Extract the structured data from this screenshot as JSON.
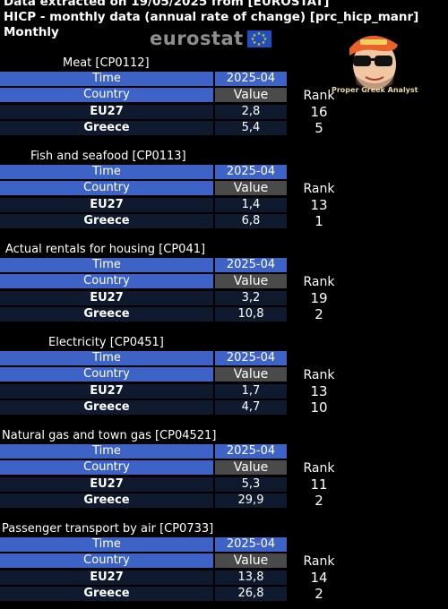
{
  "header": {
    "line1": "Data extracted on 19/05/2025 from [EUROSTAT]",
    "line2": "HICP - monthly data (annual rate of change) [prc_hicp_manr]",
    "line3": "Monthly",
    "logo_text": "eurostat",
    "mascot_caption": "Proper Greek Analyst"
  },
  "labels": {
    "time": "Time",
    "country": "Country",
    "period": "2025-04",
    "value": "Value",
    "rank": "Rank"
  },
  "tables": [
    {
      "title": "Meat [CP0112]",
      "rows": [
        {
          "country": "EU27",
          "value": "2,8",
          "rank": "16"
        },
        {
          "country": "Greece",
          "value": "5,4",
          "rank": "5"
        }
      ]
    },
    {
      "title": "Fish and seafood [CP0113]",
      "rows": [
        {
          "country": "EU27",
          "value": "1,4",
          "rank": "13"
        },
        {
          "country": "Greece",
          "value": "6,8",
          "rank": "1"
        }
      ]
    },
    {
      "title": "Actual rentals for housing [CP041]",
      "rows": [
        {
          "country": "EU27",
          "value": "3,2",
          "rank": "19"
        },
        {
          "country": "Greece",
          "value": "10,8",
          "rank": "2"
        }
      ]
    },
    {
      "title": "Electricity [CP0451]",
      "rows": [
        {
          "country": "EU27",
          "value": "1,7",
          "rank": "13"
        },
        {
          "country": "Greece",
          "value": "4,7",
          "rank": "10"
        }
      ]
    },
    {
      "title": "Natural gas and town gas [CP04521]",
      "rows": [
        {
          "country": "EU27",
          "value": "5,3",
          "rank": "11"
        },
        {
          "country": "Greece",
          "value": "29,9",
          "rank": "2"
        }
      ]
    },
    {
      "title": "Passenger transport by air [CP0733]",
      "rows": [
        {
          "country": "EU27",
          "value": "13,8",
          "rank": "14"
        },
        {
          "country": "Greece",
          "value": "26,8",
          "rank": "2"
        }
      ]
    }
  ]
}
